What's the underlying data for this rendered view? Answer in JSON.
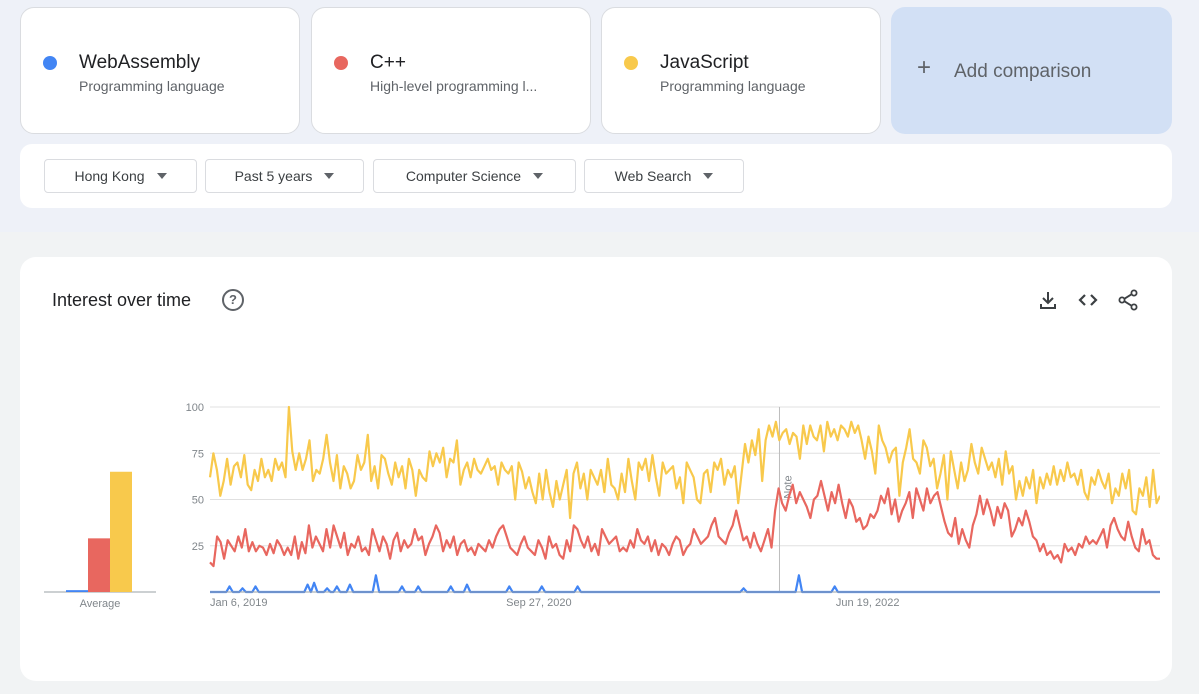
{
  "terms": [
    {
      "name": "WebAssembly",
      "type": "Programming language",
      "color": "#4285f4"
    },
    {
      "name": "C++",
      "type": "High-level programming l...",
      "color": "#e8675f"
    },
    {
      "name": "JavaScript",
      "type": "Programming language",
      "color": "#f8c94c"
    }
  ],
  "add_comparison": {
    "plus": "+",
    "label": "Add comparison"
  },
  "filters": [
    {
      "label": "Hong Kong"
    },
    {
      "label": "Past 5 years"
    },
    {
      "label": "Computer Science"
    },
    {
      "label": "Web Search"
    }
  ],
  "panel": {
    "title": "Interest over time",
    "help_glyph": "?",
    "icons": [
      "download-icon",
      "embed-code-icon",
      "share-icon"
    ]
  },
  "chart_data": [
    {
      "type": "bar",
      "categories": [
        "WebAssembly",
        "C++",
        "JavaScript"
      ],
      "values": [
        1,
        29,
        65
      ],
      "xlabel": "Average",
      "ylim": [
        0,
        100
      ],
      "colors": [
        "#4285f4",
        "#e8675f",
        "#f8c94c"
      ]
    },
    {
      "type": "line",
      "x_range": [
        "2019-01-06",
        "2023-12-31"
      ],
      "x_tick_labels": [
        "Jan 6, 2019",
        "Sep 27, 2020",
        "Jun 19, 2022"
      ],
      "y_ticks": [
        25,
        50,
        75,
        100
      ],
      "ylim": [
        0,
        100
      ],
      "grid": true,
      "note_label": "Note",
      "note_x": "2022-01-01",
      "series": [
        {
          "name": "JavaScript",
          "color": "#f8c94c",
          "values": [
            62,
            75,
            66,
            52,
            60,
            72,
            58,
            68,
            70,
            62,
            74,
            58,
            55,
            66,
            60,
            72,
            62,
            66,
            60,
            72,
            66,
            70,
            62,
            100,
            76,
            66,
            75,
            66,
            72,
            82,
            60,
            66,
            64,
            72,
            85,
            70,
            60,
            74,
            56,
            68,
            64,
            56,
            60,
            74,
            66,
            70,
            85,
            60,
            68,
            56,
            74,
            72,
            64,
            58,
            70,
            62,
            68,
            56,
            72,
            66,
            52,
            66,
            62,
            60,
            76,
            68,
            75,
            70,
            78,
            62,
            72,
            70,
            82,
            58,
            66,
            70,
            62,
            72,
            66,
            64,
            68,
            72,
            66,
            68,
            58,
            70,
            66,
            64,
            68,
            50,
            70,
            65,
            56,
            62,
            54,
            48,
            64,
            50,
            66,
            54,
            46,
            60,
            50,
            58,
            66,
            40,
            64,
            70,
            56,
            64,
            50,
            66,
            62,
            58,
            66,
            54,
            72,
            58,
            56,
            50,
            64,
            54,
            72,
            60,
            50,
            70,
            66,
            72,
            60,
            74,
            62,
            52,
            70,
            64,
            66,
            68,
            56,
            62,
            48,
            70,
            66,
            62,
            50,
            48,
            64,
            66,
            54,
            70,
            66,
            72,
            58,
            66,
            62,
            68,
            48,
            64,
            80,
            70,
            82,
            74,
            88,
            60,
            82,
            90,
            84,
            92,
            82,
            86,
            88,
            80,
            86,
            84,
            72,
            90,
            80,
            90,
            84,
            82,
            90,
            76,
            92,
            84,
            88,
            82,
            90,
            88,
            84,
            92,
            86,
            90,
            82,
            72,
            84,
            76,
            64,
            90,
            82,
            78,
            70,
            76,
            78,
            52,
            70,
            78,
            88,
            72,
            70,
            64,
            82,
            78,
            68,
            72,
            56,
            64,
            74,
            50,
            76,
            66,
            56,
            70,
            60,
            66,
            80,
            70,
            64,
            78,
            72,
            66,
            70,
            62,
            72,
            58,
            76,
            64,
            68,
            50,
            60,
            52,
            62,
            56,
            66,
            48,
            62,
            56,
            64,
            58,
            68,
            58,
            66,
            60,
            70,
            62,
            64,
            58,
            66,
            54,
            50,
            62,
            58,
            66,
            60,
            56,
            64,
            48,
            56,
            52,
            64,
            56,
            66,
            44,
            42,
            56,
            52,
            62,
            46,
            66,
            48,
            52
          ]
        },
        {
          "name": "C++",
          "color": "#e8675f",
          "values": [
            16,
            14,
            30,
            27,
            18,
            28,
            25,
            22,
            30,
            24,
            34,
            22,
            27,
            22,
            25,
            24,
            20,
            26,
            21,
            28,
            25,
            20,
            24,
            20,
            30,
            18,
            27,
            21,
            36,
            24,
            30,
            26,
            22,
            34,
            24,
            36,
            30,
            24,
            32,
            20,
            26,
            24,
            30,
            22,
            24,
            20,
            34,
            28,
            22,
            30,
            26,
            18,
            28,
            32,
            22,
            28,
            24,
            26,
            34,
            28,
            30,
            20,
            26,
            30,
            36,
            32,
            22,
            28,
            24,
            30,
            20,
            26,
            28,
            22,
            24,
            20,
            26,
            24,
            22,
            28,
            24,
            30,
            34,
            36,
            30,
            24,
            22,
            20,
            26,
            30,
            24,
            22,
            20,
            28,
            24,
            18,
            30,
            24,
            26,
            20,
            18,
            28,
            22,
            36,
            34,
            28,
            24,
            30,
            22,
            26,
            20,
            34,
            30,
            26,
            28,
            30,
            22,
            24,
            22,
            28,
            24,
            34,
            28,
            26,
            30,
            22,
            28,
            20,
            26,
            24,
            20,
            26,
            30,
            28,
            20,
            24,
            26,
            34,
            30,
            26,
            28,
            30,
            36,
            40,
            30,
            28,
            26,
            32,
            36,
            44,
            36,
            28,
            30,
            24,
            32,
            26,
            22,
            28,
            34,
            24,
            44,
            56,
            48,
            44,
            52,
            58,
            48,
            54,
            50,
            46,
            40,
            50,
            52,
            60,
            52,
            44,
            54,
            48,
            58,
            48,
            40,
            50,
            46,
            38,
            40,
            34,
            36,
            42,
            40,
            44,
            52,
            48,
            56,
            42,
            50,
            38,
            44,
            48,
            54,
            40,
            56,
            50,
            44,
            56,
            48,
            52,
            54,
            46,
            38,
            32,
            30,
            40,
            26,
            34,
            28,
            24,
            36,
            42,
            52,
            42,
            50,
            44,
            36,
            46,
            40,
            48,
            44,
            30,
            34,
            40,
            36,
            44,
            38,
            30,
            28,
            22,
            26,
            20,
            22,
            18,
            20,
            16,
            26,
            22,
            24,
            20,
            26,
            24,
            30,
            26,
            28,
            26,
            30,
            34,
            24,
            36,
            40,
            34,
            30,
            28,
            38,
            30,
            24,
            22,
            34,
            26,
            28,
            20,
            18,
            18
          ]
        },
        {
          "name": "WebAssembly",
          "color": "#4285f4",
          "values": [
            0,
            0,
            0,
            0,
            0,
            0,
            3,
            0,
            0,
            0,
            2,
            0,
            0,
            0,
            3,
            0,
            0,
            0,
            0,
            0,
            0,
            0,
            0,
            0,
            0,
            0,
            0,
            0,
            0,
            0,
            4,
            0,
            5,
            0,
            0,
            0,
            2,
            0,
            0,
            3,
            0,
            0,
            0,
            4,
            0,
            0,
            0,
            0,
            0,
            0,
            0,
            9,
            0,
            0,
            0,
            0,
            0,
            0,
            0,
            3,
            0,
            0,
            0,
            0,
            3,
            0,
            0,
            0,
            0,
            0,
            0,
            0,
            0,
            0,
            3,
            0,
            0,
            0,
            0,
            4,
            0,
            0,
            0,
            0,
            0,
            0,
            0,
            0,
            0,
            0,
            0,
            0,
            3,
            0,
            0,
            0,
            0,
            0,
            0,
            0,
            0,
            0,
            3,
            0,
            0,
            0,
            0,
            0,
            0,
            0,
            0,
            0,
            0,
            3,
            0,
            0,
            0,
            0,
            0,
            0,
            0,
            0,
            0,
            0,
            0,
            0,
            0,
            0,
            0,
            0,
            0,
            0,
            0,
            0,
            0,
            0,
            0,
            0,
            0,
            0,
            0,
            0,
            0,
            0,
            0,
            0,
            0,
            0,
            0,
            0,
            0,
            0,
            0,
            0,
            0,
            0,
            0,
            0,
            0,
            0,
            0,
            0,
            0,
            0,
            2,
            0,
            0,
            0,
            0,
            0,
            0,
            0,
            0,
            0,
            0,
            0,
            0,
            0,
            0,
            0,
            0,
            9,
            0,
            0,
            0,
            0,
            0,
            0,
            0,
            0,
            0,
            0,
            3,
            0,
            0,
            0,
            0,
            0,
            0,
            0,
            0,
            0,
            0,
            0,
            0,
            0,
            0,
            0,
            0,
            0,
            0,
            0,
            0,
            0,
            0,
            0,
            0,
            0,
            0,
            0,
            0,
            0,
            0,
            0,
            0,
            0,
            0,
            0,
            0,
            0,
            0,
            0,
            0,
            0,
            0,
            0,
            0,
            0,
            0,
            0,
            0,
            0,
            0,
            0,
            0,
            0,
            0,
            0,
            0,
            0,
            0,
            0,
            0,
            0,
            0,
            0,
            0,
            0,
            0,
            0,
            0,
            0,
            0,
            0,
            0,
            0,
            0,
            0,
            0,
            0,
            0,
            0,
            0,
            0,
            0,
            0,
            0,
            0,
            0,
            0,
            0,
            0,
            0,
            0,
            0,
            0,
            0,
            0,
            0,
            0,
            0,
            0,
            0
          ]
        }
      ]
    }
  ]
}
